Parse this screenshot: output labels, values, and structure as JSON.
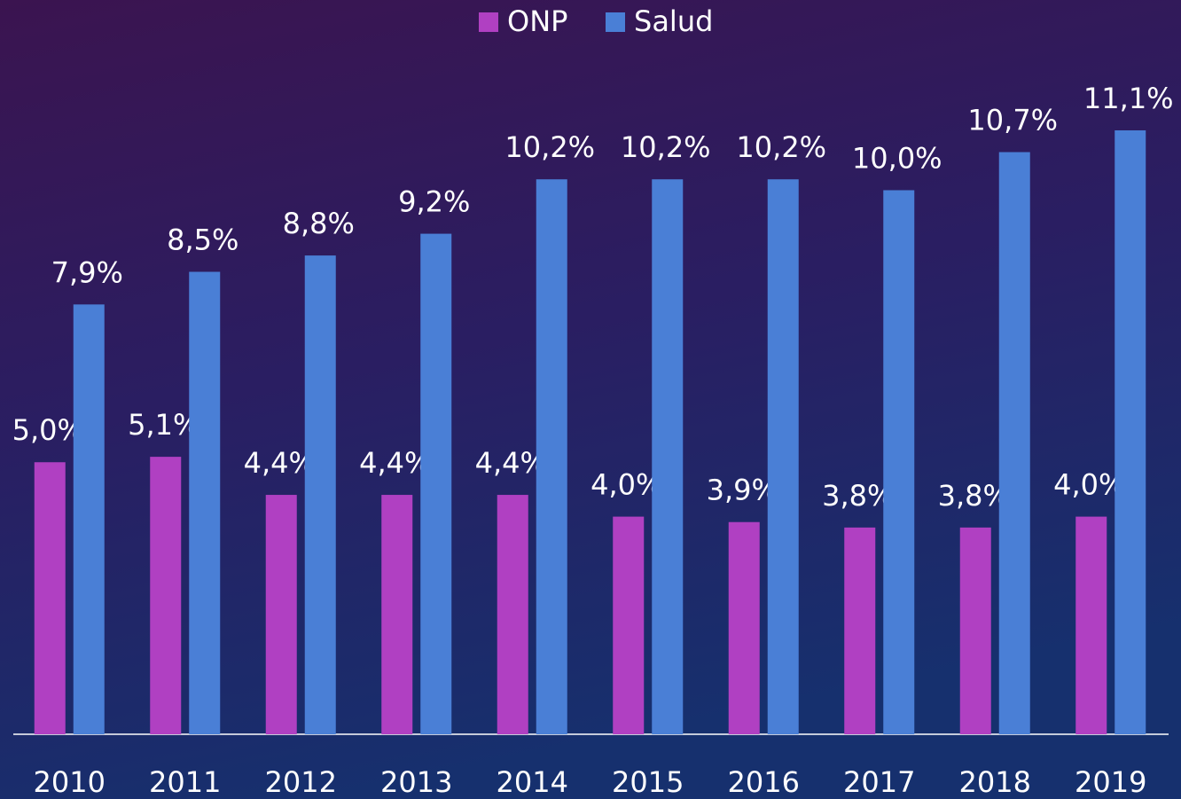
{
  "chart_data": {
    "type": "bar",
    "categories": [
      "2010",
      "2011",
      "2012",
      "2013",
      "2014",
      "2015",
      "2016",
      "2017",
      "2018",
      "2019"
    ],
    "series": [
      {
        "name": "ONP",
        "color": "#b040c2",
        "values": [
          5.0,
          5.1,
          4.4,
          4.4,
          4.4,
          4.0,
          3.9,
          3.8,
          3.8,
          4.0
        ],
        "value_labels": [
          "5,0%",
          "5,1%",
          "4,4%",
          "4,4%",
          "4,4%",
          "4,0%",
          "3,9%",
          "3,8%",
          "3,8%",
          "4,0%"
        ]
      },
      {
        "name": "Salud",
        "color": "#4a7fd6",
        "values": [
          7.9,
          8.5,
          8.8,
          9.2,
          10.2,
          10.2,
          10.2,
          10.0,
          10.7,
          11.1
        ],
        "value_labels": [
          "7,9%",
          "8,5%",
          "8,8%",
          "9,2%",
          "10,2%",
          "10,2%",
          "10,2%",
          "10,0%",
          "10,7%",
          "11,1%"
        ]
      }
    ],
    "legend": "top"
  }
}
